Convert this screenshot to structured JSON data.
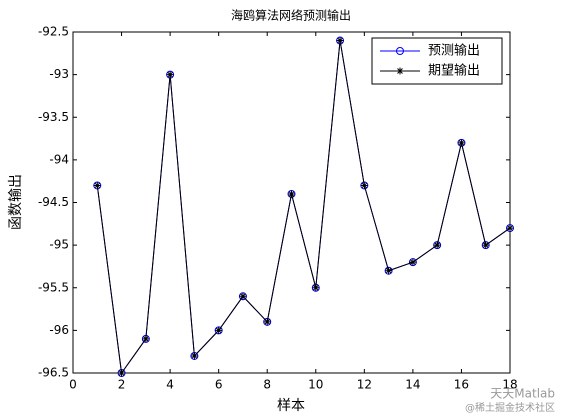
{
  "chart_data": {
    "type": "line",
    "title": "海鸥算法网络预测输出",
    "x_label": "样本",
    "y_label": "函数输出",
    "x": [
      1,
      2,
      3,
      4,
      5,
      6,
      7,
      8,
      9,
      10,
      11,
      12,
      13,
      14,
      15,
      16,
      17,
      18
    ],
    "series": [
      {
        "name": "预测输出",
        "color": "#0000ff",
        "marker": "o",
        "values": [
          -94.3,
          -96.5,
          -96.1,
          -93.0,
          -96.3,
          -96.0,
          -95.6,
          -95.9,
          -94.4,
          -95.5,
          -92.6,
          -94.3,
          -95.3,
          -95.2,
          -95.0,
          -93.8,
          -95.0,
          -94.8
        ]
      },
      {
        "name": "期望输出",
        "color": "#000000",
        "marker": "*",
        "values": [
          -94.3,
          -96.5,
          -96.1,
          -93.0,
          -96.3,
          -96.0,
          -95.6,
          -95.9,
          -94.4,
          -95.5,
          -92.6,
          -94.3,
          -95.3,
          -95.2,
          -95.0,
          -93.8,
          -95.0,
          -94.8
        ]
      }
    ],
    "xlim": [
      0,
      18
    ],
    "xticks": [
      0,
      2,
      4,
      6,
      8,
      10,
      12,
      14,
      16,
      18
    ],
    "ylim": [
      -96.5,
      -92.5
    ],
    "yticks": [
      -96.5,
      -96,
      -95.5,
      -95,
      -94.5,
      -94,
      -93.5,
      -93,
      -92.5
    ],
    "legend": "upper right",
    "watermark": [
      "天天Matlab",
      "@稀土掘金技术社区"
    ]
  }
}
